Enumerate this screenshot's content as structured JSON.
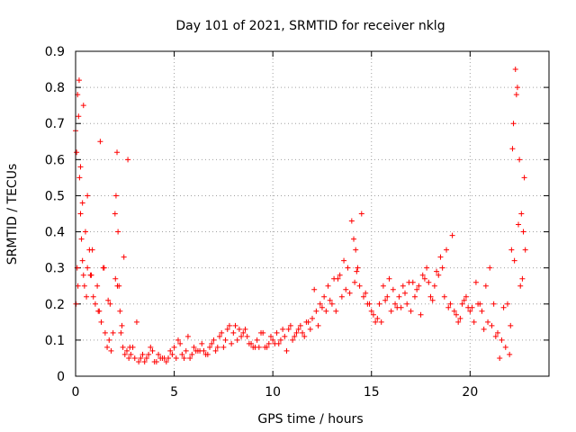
{
  "chart_data": {
    "type": "scatter",
    "title": "Day 101 of 2021, SRMTID for receiver nklg",
    "xlabel": "GPS time / hours",
    "ylabel": "SRMTID / TECUs",
    "xlim": [
      0,
      24
    ],
    "ylim": [
      0,
      0.9
    ],
    "xticks": [
      0,
      5,
      10,
      15,
      20
    ],
    "yticks": [
      0,
      0.1,
      0.2,
      0.3,
      0.4,
      0.5,
      0.6,
      0.7,
      0.8,
      0.9
    ],
    "grid": true,
    "marker": "plus",
    "color": "#ff0000",
    "series": [
      {
        "name": "nklg",
        "x": [
          0.0,
          0.05,
          0.1,
          0.15,
          0.2,
          0.25,
          0.3,
          0.35,
          0.4,
          0.45,
          0.5,
          0.55,
          0.6,
          0.7,
          0.8,
          0.9,
          1.0,
          1.1,
          1.2,
          1.3,
          1.4,
          1.5,
          1.6,
          1.7,
          1.8,
          1.9,
          2.0,
          2.05,
          2.1,
          2.15,
          2.2,
          2.25,
          2.3,
          2.4,
          2.5,
          2.6,
          2.7,
          2.8,
          2.9,
          3.0,
          3.2,
          3.4,
          3.6,
          3.8,
          4.0,
          4.2,
          4.4,
          4.6,
          4.8,
          5.0,
          5.2,
          5.4,
          5.6,
          5.8,
          6.0,
          6.2,
          6.4,
          6.6,
          6.8,
          7.0,
          7.2,
          7.4,
          7.6,
          7.8,
          8.0,
          8.2,
          8.4,
          8.6,
          8.8,
          9.0,
          9.2,
          9.4,
          9.6,
          9.8,
          10.0,
          10.2,
          10.4,
          10.6,
          10.8,
          11.0,
          11.2,
          11.4,
          11.6,
          11.8,
          12.0,
          12.2,
          12.4,
          12.6,
          12.8,
          13.0,
          13.2,
          13.4,
          13.6,
          13.8,
          14.0,
          14.1,
          14.2,
          14.3,
          14.4,
          14.6,
          14.8,
          15.0,
          15.2,
          15.4,
          15.6,
          15.8,
          16.0,
          16.2,
          16.4,
          16.6,
          16.8,
          17.0,
          17.2,
          17.4,
          17.6,
          17.8,
          18.0,
          18.2,
          18.4,
          18.6,
          18.8,
          19.0,
          19.2,
          19.4,
          19.6,
          19.8,
          20.0,
          20.2,
          20.4,
          20.6,
          20.8,
          21.0,
          21.2,
          21.4,
          21.6,
          21.8,
          22.0,
          22.1,
          22.2,
          22.3,
          22.4,
          22.5,
          22.6,
          22.7,
          22.8,
          0.08,
          0.12,
          0.25,
          0.4,
          0.6,
          0.85,
          1.15,
          1.45,
          1.75,
          2.12,
          2.35,
          2.65,
          3.1,
          3.5,
          3.9,
          4.3,
          4.7,
          5.1,
          5.5,
          5.9,
          6.3,
          6.7,
          7.1,
          7.5,
          7.9,
          8.3,
          8.7,
          9.1,
          9.5,
          9.9,
          10.3,
          10.7,
          11.1,
          11.5,
          11.9,
          12.3,
          12.7,
          13.1,
          13.5,
          13.9,
          14.15,
          14.5,
          14.9,
          15.3,
          15.7,
          16.1,
          16.5,
          16.9,
          17.3,
          17.7,
          18.1,
          18.5,
          18.9,
          19.3,
          19.7,
          20.1,
          20.5,
          20.9,
          21.3,
          21.7,
          22.05,
          22.15,
          22.35,
          22.55,
          22.75,
          0.02,
          0.18,
          0.35,
          0.75,
          1.25,
          1.65,
          2.02,
          2.45,
          2.75,
          3.3,
          3.7,
          4.1,
          4.5,
          4.9,
          5.3,
          5.7,
          6.1,
          6.5,
          6.9,
          7.3,
          7.7,
          8.1,
          8.5,
          8.9,
          9.3,
          9.7,
          10.1,
          10.5,
          10.9,
          11.3,
          11.7,
          12.1,
          12.5,
          12.9,
          13.3,
          13.7,
          14.25,
          14.7,
          15.1,
          15.5,
          15.9,
          16.3,
          16.7,
          17.1,
          17.5,
          17.9,
          18.3,
          18.7,
          19.1,
          19.5,
          19.9,
          20.3,
          20.7,
          21.1,
          21.5,
          21.9,
          22.25,
          22.45,
          22.65
        ],
        "y": [
          0.68,
          0.62,
          0.78,
          0.72,
          0.55,
          0.45,
          0.38,
          0.32,
          0.28,
          0.25,
          0.4,
          0.22,
          0.3,
          0.35,
          0.28,
          0.22,
          0.2,
          0.25,
          0.18,
          0.15,
          0.3,
          0.12,
          0.08,
          0.1,
          0.07,
          0.12,
          0.45,
          0.5,
          0.62,
          0.4,
          0.25,
          0.18,
          0.12,
          0.08,
          0.06,
          0.07,
          0.05,
          0.06,
          0.08,
          0.05,
          0.04,
          0.06,
          0.05,
          0.08,
          0.04,
          0.06,
          0.05,
          0.04,
          0.07,
          0.08,
          0.1,
          0.06,
          0.07,
          0.05,
          0.08,
          0.07,
          0.09,
          0.06,
          0.08,
          0.1,
          0.08,
          0.12,
          0.1,
          0.14,
          0.12,
          0.1,
          0.11,
          0.13,
          0.09,
          0.08,
          0.1,
          0.12,
          0.08,
          0.09,
          0.1,
          0.12,
          0.1,
          0.11,
          0.13,
          0.1,
          0.12,
          0.14,
          0.11,
          0.15,
          0.16,
          0.18,
          0.2,
          0.22,
          0.25,
          0.2,
          0.18,
          0.28,
          0.32,
          0.3,
          0.43,
          0.38,
          0.35,
          0.3,
          0.25,
          0.22,
          0.2,
          0.18,
          0.15,
          0.2,
          0.25,
          0.22,
          0.18,
          0.2,
          0.22,
          0.25,
          0.2,
          0.18,
          0.22,
          0.25,
          0.28,
          0.3,
          0.22,
          0.25,
          0.28,
          0.3,
          0.35,
          0.2,
          0.18,
          0.15,
          0.2,
          0.22,
          0.18,
          0.15,
          0.2,
          0.18,
          0.25,
          0.3,
          0.2,
          0.12,
          0.1,
          0.08,
          0.06,
          0.35,
          0.7,
          0.85,
          0.8,
          0.6,
          0.45,
          0.4,
          0.35,
          0.3,
          0.25,
          0.58,
          0.75,
          0.5,
          0.35,
          0.18,
          0.3,
          0.2,
          0.25,
          0.14,
          0.6,
          0.15,
          0.04,
          0.07,
          0.05,
          0.05,
          0.05,
          0.05,
          0.06,
          0.07,
          0.06,
          0.07,
          0.08,
          0.09,
          0.13,
          0.11,
          0.08,
          0.12,
          0.11,
          0.09,
          0.07,
          0.11,
          0.12,
          0.13,
          0.14,
          0.18,
          0.27,
          0.22,
          0.23,
          0.26,
          0.45,
          0.2,
          0.16,
          0.21,
          0.24,
          0.19,
          0.26,
          0.24,
          0.27,
          0.21,
          0.33,
          0.19,
          0.17,
          0.21,
          0.19,
          0.2,
          0.15,
          0.11,
          0.19,
          0.14,
          0.63,
          0.78,
          0.25,
          0.55,
          0.2,
          0.82,
          0.48,
          0.28,
          0.65,
          0.21,
          0.27,
          0.33,
          0.08,
          0.05,
          0.06,
          0.04,
          0.05,
          0.06,
          0.09,
          0.11,
          0.07,
          0.07,
          0.09,
          0.11,
          0.13,
          0.14,
          0.12,
          0.09,
          0.08,
          0.08,
          0.09,
          0.13,
          0.14,
          0.13,
          0.15,
          0.24,
          0.19,
          0.21,
          0.27,
          0.24,
          0.29,
          0.23,
          0.17,
          0.15,
          0.27,
          0.19,
          0.23,
          0.26,
          0.17,
          0.26,
          0.29,
          0.22,
          0.39,
          0.16,
          0.19,
          0.26,
          0.13,
          0.14,
          0.05,
          0.2,
          0.32,
          0.42,
          0.27
        ]
      }
    ]
  }
}
